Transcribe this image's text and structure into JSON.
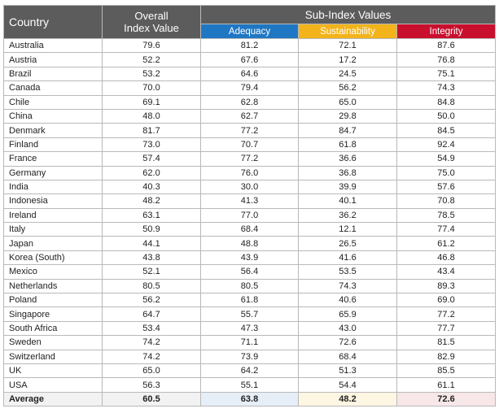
{
  "chart_data": {
    "type": "table",
    "headers": {
      "country": "Country",
      "overall_line1": "Overall",
      "overall_line2": "Index Value",
      "sub_index": "Sub-Index Values",
      "adequacy": "Adequacy",
      "sustainability": "Sustainability",
      "integrity": "Integrity"
    },
    "colors": {
      "header_bg": "#5c5c5c",
      "adequacy": "#1f77c4",
      "sustainability": "#f2b31b",
      "integrity": "#c8102e"
    },
    "rows": [
      {
        "country": "Australia",
        "overall": "79.6",
        "adequacy": "81.2",
        "sustainability": "72.1",
        "integrity": "87.6"
      },
      {
        "country": "Austria",
        "overall": "52.2",
        "adequacy": "67.6",
        "sustainability": "17.2",
        "integrity": "76.8"
      },
      {
        "country": "Brazil",
        "overall": "53.2",
        "adequacy": "64.6",
        "sustainability": "24.5",
        "integrity": "75.1"
      },
      {
        "country": "Canada",
        "overall": "70.0",
        "adequacy": "79.4",
        "sustainability": "56.2",
        "integrity": "74.3"
      },
      {
        "country": "Chile",
        "overall": "69.1",
        "adequacy": "62.8",
        "sustainability": "65.0",
        "integrity": "84.8"
      },
      {
        "country": "China",
        "overall": "48.0",
        "adequacy": "62.7",
        "sustainability": "29.8",
        "integrity": "50.0"
      },
      {
        "country": "Denmark",
        "overall": "81.7",
        "adequacy": "77.2",
        "sustainability": "84.7",
        "integrity": "84.5"
      },
      {
        "country": "Finland",
        "overall": "73.0",
        "adequacy": "70.7",
        "sustainability": "61.8",
        "integrity": "92.4"
      },
      {
        "country": "France",
        "overall": "57.4",
        "adequacy": "77.2",
        "sustainability": "36.6",
        "integrity": "54.9"
      },
      {
        "country": "Germany",
        "overall": "62.0",
        "adequacy": "76.0",
        "sustainability": "36.8",
        "integrity": "75.0"
      },
      {
        "country": "India",
        "overall": "40.3",
        "adequacy": "30.0",
        "sustainability": "39.9",
        "integrity": "57.6"
      },
      {
        "country": "Indonesia",
        "overall": "48.2",
        "adequacy": "41.3",
        "sustainability": "40.1",
        "integrity": "70.8"
      },
      {
        "country": "Ireland",
        "overall": "63.1",
        "adequacy": "77.0",
        "sustainability": "36.2",
        "integrity": "78.5"
      },
      {
        "country": "Italy",
        "overall": "50.9",
        "adequacy": "68.4",
        "sustainability": "12.1",
        "integrity": "77.4"
      },
      {
        "country": "Japan",
        "overall": "44.1",
        "adequacy": "48.8",
        "sustainability": "26.5",
        "integrity": "61.2"
      },
      {
        "country": "Korea (South)",
        "overall": "43.8",
        "adequacy": "43.9",
        "sustainability": "41.6",
        "integrity": "46.8"
      },
      {
        "country": "Mexico",
        "overall": "52.1",
        "adequacy": "56.4",
        "sustainability": "53.5",
        "integrity": "43.4"
      },
      {
        "country": "Netherlands",
        "overall": "80.5",
        "adequacy": "80.5",
        "sustainability": "74.3",
        "integrity": "89.3"
      },
      {
        "country": "Poland",
        "overall": "56.2",
        "adequacy": "61.8",
        "sustainability": "40.6",
        "integrity": "69.0"
      },
      {
        "country": "Singapore",
        "overall": "64.7",
        "adequacy": "55.7",
        "sustainability": "65.9",
        "integrity": "77.2"
      },
      {
        "country": "South Africa",
        "overall": "53.4",
        "adequacy": "47.3",
        "sustainability": "43.0",
        "integrity": "77.7"
      },
      {
        "country": "Sweden",
        "overall": "74.2",
        "adequacy": "71.1",
        "sustainability": "72.6",
        "integrity": "81.5"
      },
      {
        "country": "Switzerland",
        "overall": "74.2",
        "adequacy": "73.9",
        "sustainability": "68.4",
        "integrity": "82.9"
      },
      {
        "country": "UK",
        "overall": "65.0",
        "adequacy": "64.2",
        "sustainability": "51.3",
        "integrity": "85.5"
      },
      {
        "country": "USA",
        "overall": "56.3",
        "adequacy": "55.1",
        "sustainability": "54.4",
        "integrity": "61.1"
      }
    ],
    "average": {
      "country": "Average",
      "overall": "60.5",
      "adequacy": "63.8",
      "sustainability": "48.2",
      "integrity": "72.6"
    }
  }
}
